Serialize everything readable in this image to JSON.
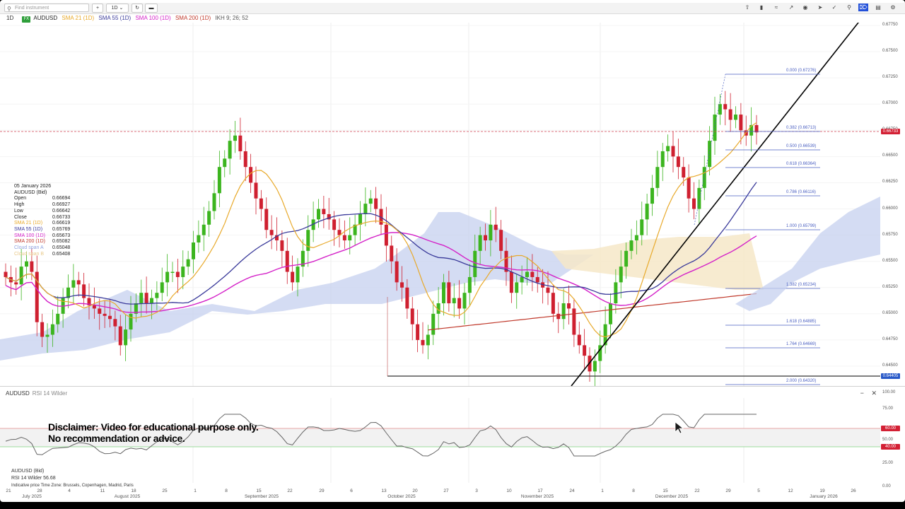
{
  "toolbar": {
    "search_placeholder": "Find instrument",
    "add_label": "+",
    "interval_label": "1D",
    "refresh_icon": "refresh-icon",
    "layout_icon": "layout-icon"
  },
  "header": {
    "timeframe": "1D",
    "badge": "FX",
    "symbol": "AUDUSD",
    "sma21": "SMA 21 (1D)",
    "sma55": "SMA 55 (1D)",
    "sma100": "SMA 100 (1D)",
    "sma200": "SMA 200 (1D)",
    "ikh": "IKH 9; 26; 52"
  },
  "colors": {
    "bull": "#3cb51f",
    "bear": "#cf2030",
    "sma21": "#e8a92a",
    "sma55": "#3a3a9a",
    "sma100": "#d422c8",
    "sma200": "#c0392b",
    "cloud_bull": "#c6d0ef",
    "cloud_bear": "#f6e7c8",
    "rsi_line": "#666666"
  },
  "info": {
    "date": "05 January 2026",
    "instrument": "AUDUSD (Bid)",
    "rows": [
      {
        "label": "Open",
        "value": "0.66694"
      },
      {
        "label": "High",
        "value": "0.66927"
      },
      {
        "label": "Low",
        "value": "0.66642"
      },
      {
        "label": "Close",
        "value": "0.66733"
      },
      {
        "label": "SMA 21 (1D)",
        "value": "0.66619"
      },
      {
        "label": "SMA 55 (1D)",
        "value": "0.65769"
      },
      {
        "label": "SMA 100 (1D)",
        "value": "0.65673"
      },
      {
        "label": "SMA 200 (1D)",
        "value": "0.65082"
      },
      {
        "label": "Cloud span A",
        "value": "0.65048"
      },
      {
        "label": "Cloud span B",
        "value": "0.65408"
      }
    ]
  },
  "price_axis": [
    "0.67750",
    "0.67500",
    "0.67250",
    "0.67000",
    "0.66750",
    "0.66500",
    "0.66250",
    "0.66000",
    "0.65750",
    "0.65500",
    "0.65250",
    "0.65000",
    "0.64750",
    "0.64500"
  ],
  "current_price": "0.66733",
  "support_price": "0.64405",
  "fib_levels": [
    {
      "label": "0.000 (0.67276)"
    },
    {
      "label": "0.382 (0.66713)"
    },
    {
      "label": "0.500 (0.66539)"
    },
    {
      "label": "0.618 (0.66364)"
    },
    {
      "label": "0.786 (0.66116)"
    },
    {
      "label": "1.000 (0.65799)"
    },
    {
      "label": "1.382 (0.65234)"
    },
    {
      "label": "1.618 (0.64885)"
    },
    {
      "label": "1.764 (0.64669)"
    },
    {
      "label": "2.000 (0.64320)"
    }
  ],
  "rsi": {
    "symbol": "AUDUSD",
    "title": "RSI 14 Wilder",
    "instrument": "AUDUSD (Bid)",
    "value_line": "RSI 14 Wilder  56.68",
    "axis": [
      "100.00",
      "75.00",
      "50.00",
      "25.00",
      "0.00"
    ],
    "upper": "60.00",
    "lower": "40.00"
  },
  "disclaimer": {
    "line1": "Disclaimer: Video for educational purpose only.",
    "line2": "No recommendation or advice."
  },
  "footer": "Indicative price   Time Zone: Brussels, Copenhagen, Madrid, Paris",
  "date_ticks": [
    "21",
    "28",
    "4",
    "11",
    "18",
    "25",
    "1",
    "8",
    "15",
    "22",
    "29",
    "6",
    "13",
    "20",
    "27",
    "3",
    "10",
    "17",
    "24",
    "1",
    "8",
    "15",
    "22",
    "29",
    "5",
    "12",
    "19",
    "26"
  ],
  "months": [
    "July 2025",
    "August 2025",
    "September 2025",
    "October 2025",
    "November 2025",
    "December 2025",
    "January 2026"
  ]
}
